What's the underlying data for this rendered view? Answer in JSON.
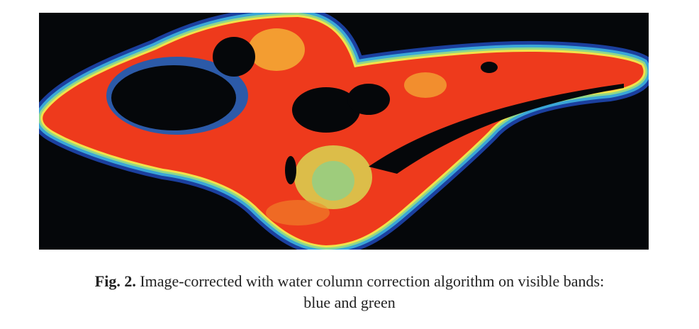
{
  "figure": {
    "label": "Fig. 2.",
    "caption_lines": [
      "Image-corrected with water column correction algorithm on visible bands:",
      "blue and green"
    ]
  }
}
